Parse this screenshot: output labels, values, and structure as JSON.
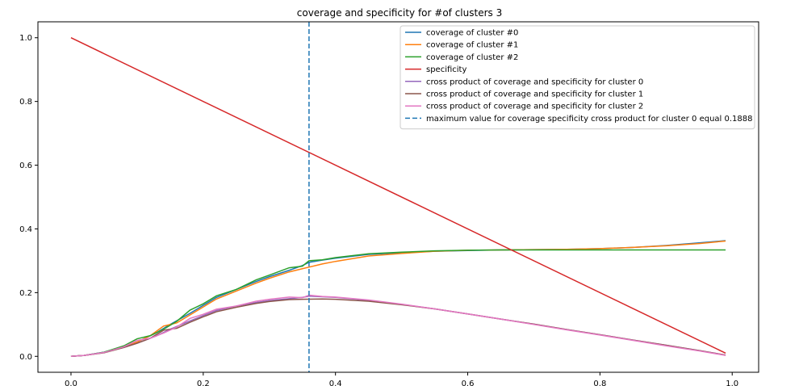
{
  "chart_data": {
    "type": "line",
    "title": "coverage and specificity for #of clusters 3",
    "xlabel": "",
    "ylabel": "",
    "xlim": [
      -0.05,
      1.04
    ],
    "ylim": [
      -0.05,
      1.05
    ],
    "xticks": [
      0.0,
      0.2,
      0.4,
      0.6,
      0.8,
      1.0
    ],
    "xtick_labels": [
      "0.0",
      "0.2",
      "0.4",
      "0.6",
      "0.8",
      "1.0"
    ],
    "yticks": [
      0.0,
      0.2,
      0.4,
      0.6,
      0.8,
      1.0
    ],
    "ytick_labels": [
      "0.0",
      "0.2",
      "0.4",
      "0.6",
      "0.8",
      "1.0"
    ],
    "grid": false,
    "legend_position": "top-right",
    "vline": {
      "x": 0.36,
      "label": "maximum value for coverage specificity cross product for cluster 0 equal 0.1888",
      "color": "#1f77b4",
      "style": "dashed"
    },
    "series": [
      {
        "name": "coverage of cluster #0",
        "color": "#1f77b4",
        "points": [
          [
            0,
            0
          ],
          [
            0.02,
            0.003
          ],
          [
            0.05,
            0.013
          ],
          [
            0.08,
            0.03
          ],
          [
            0.1,
            0.045
          ],
          [
            0.13,
            0.075
          ],
          [
            0.15,
            0.1
          ],
          [
            0.18,
            0.135
          ],
          [
            0.2,
            0.16
          ],
          [
            0.22,
            0.185
          ],
          [
            0.25,
            0.21
          ],
          [
            0.28,
            0.235
          ],
          [
            0.3,
            0.25
          ],
          [
            0.33,
            0.27
          ],
          [
            0.35,
            0.285
          ],
          [
            0.36,
            0.295
          ],
          [
            0.38,
            0.302
          ],
          [
            0.4,
            0.308
          ],
          [
            0.45,
            0.32
          ],
          [
            0.5,
            0.325
          ],
          [
            0.55,
            0.33
          ],
          [
            0.6,
            0.332
          ],
          [
            0.65,
            0.334
          ],
          [
            0.7,
            0.335
          ],
          [
            0.75,
            0.336
          ],
          [
            0.8,
            0.338
          ],
          [
            0.85,
            0.342
          ],
          [
            0.9,
            0.348
          ],
          [
            0.95,
            0.356
          ],
          [
            0.99,
            0.363
          ]
        ]
      },
      {
        "name": "coverage of cluster #1",
        "color": "#ff7f0e",
        "points": [
          [
            0,
            0
          ],
          [
            0.02,
            0.003
          ],
          [
            0.05,
            0.012
          ],
          [
            0.08,
            0.03
          ],
          [
            0.1,
            0.045
          ],
          [
            0.12,
            0.065
          ],
          [
            0.14,
            0.095
          ],
          [
            0.16,
            0.105
          ],
          [
            0.18,
            0.13
          ],
          [
            0.2,
            0.155
          ],
          [
            0.22,
            0.18
          ],
          [
            0.25,
            0.205
          ],
          [
            0.28,
            0.23
          ],
          [
            0.3,
            0.245
          ],
          [
            0.33,
            0.265
          ],
          [
            0.35,
            0.275
          ],
          [
            0.38,
            0.29
          ],
          [
            0.4,
            0.298
          ],
          [
            0.45,
            0.315
          ],
          [
            0.5,
            0.323
          ],
          [
            0.55,
            0.33
          ],
          [
            0.6,
            0.333
          ],
          [
            0.65,
            0.334
          ],
          [
            0.7,
            0.335
          ],
          [
            0.75,
            0.336
          ],
          [
            0.8,
            0.338
          ],
          [
            0.85,
            0.342
          ],
          [
            0.9,
            0.347
          ],
          [
            0.95,
            0.354
          ],
          [
            0.99,
            0.362
          ]
        ]
      },
      {
        "name": "coverage of cluster #2",
        "color": "#2ca02c",
        "points": [
          [
            0,
            0
          ],
          [
            0.02,
            0.003
          ],
          [
            0.05,
            0.013
          ],
          [
            0.08,
            0.033
          ],
          [
            0.1,
            0.055
          ],
          [
            0.12,
            0.065
          ],
          [
            0.14,
            0.085
          ],
          [
            0.16,
            0.11
          ],
          [
            0.18,
            0.145
          ],
          [
            0.2,
            0.165
          ],
          [
            0.22,
            0.19
          ],
          [
            0.25,
            0.21
          ],
          [
            0.28,
            0.24
          ],
          [
            0.3,
            0.255
          ],
          [
            0.33,
            0.278
          ],
          [
            0.35,
            0.283
          ],
          [
            0.36,
            0.3
          ],
          [
            0.38,
            0.303
          ],
          [
            0.4,
            0.31
          ],
          [
            0.45,
            0.322
          ],
          [
            0.5,
            0.327
          ],
          [
            0.55,
            0.331
          ],
          [
            0.6,
            0.333
          ],
          [
            0.65,
            0.334
          ],
          [
            0.7,
            0.334
          ],
          [
            0.75,
            0.334
          ],
          [
            0.8,
            0.334
          ],
          [
            0.85,
            0.334
          ],
          [
            0.9,
            0.334
          ],
          [
            0.95,
            0.334
          ],
          [
            0.99,
            0.334
          ]
        ]
      },
      {
        "name": "specificity",
        "color": "#d62728",
        "points": [
          [
            0,
            1.0
          ],
          [
            0.99,
            0.01
          ]
        ]
      },
      {
        "name": "cross product of coverage and specificity for cluster 0",
        "color": "#9467bd",
        "points": [
          [
            0,
            0
          ],
          [
            0.02,
            0.003
          ],
          [
            0.05,
            0.012
          ],
          [
            0.08,
            0.028
          ],
          [
            0.1,
            0.041
          ],
          [
            0.13,
            0.065
          ],
          [
            0.15,
            0.085
          ],
          [
            0.18,
            0.111
          ],
          [
            0.2,
            0.128
          ],
          [
            0.22,
            0.144
          ],
          [
            0.25,
            0.158
          ],
          [
            0.28,
            0.169
          ],
          [
            0.3,
            0.175
          ],
          [
            0.33,
            0.181
          ],
          [
            0.35,
            0.185
          ],
          [
            0.36,
            0.1888
          ],
          [
            0.38,
            0.187
          ],
          [
            0.4,
            0.185
          ],
          [
            0.45,
            0.176
          ],
          [
            0.5,
            0.163
          ],
          [
            0.55,
            0.149
          ],
          [
            0.6,
            0.133
          ],
          [
            0.65,
            0.117
          ],
          [
            0.7,
            0.101
          ],
          [
            0.75,
            0.084
          ],
          [
            0.8,
            0.068
          ],
          [
            0.85,
            0.051
          ],
          [
            0.9,
            0.035
          ],
          [
            0.95,
            0.018
          ],
          [
            0.99,
            0.004
          ]
        ]
      },
      {
        "name": "cross product of coverage and specificity for cluster 1",
        "color": "#8c564b",
        "points": [
          [
            0,
            0
          ],
          [
            0.02,
            0.003
          ],
          [
            0.05,
            0.011
          ],
          [
            0.08,
            0.028
          ],
          [
            0.1,
            0.041
          ],
          [
            0.12,
            0.057
          ],
          [
            0.14,
            0.082
          ],
          [
            0.16,
            0.088
          ],
          [
            0.18,
            0.107
          ],
          [
            0.2,
            0.124
          ],
          [
            0.22,
            0.14
          ],
          [
            0.25,
            0.154
          ],
          [
            0.28,
            0.166
          ],
          [
            0.3,
            0.172
          ],
          [
            0.33,
            0.178
          ],
          [
            0.35,
            0.179
          ],
          [
            0.38,
            0.18
          ],
          [
            0.4,
            0.179
          ],
          [
            0.45,
            0.173
          ],
          [
            0.5,
            0.162
          ],
          [
            0.55,
            0.149
          ],
          [
            0.6,
            0.133
          ],
          [
            0.65,
            0.117
          ],
          [
            0.7,
            0.101
          ],
          [
            0.75,
            0.084
          ],
          [
            0.8,
            0.068
          ],
          [
            0.85,
            0.051
          ],
          [
            0.9,
            0.035
          ],
          [
            0.95,
            0.018
          ],
          [
            0.99,
            0.004
          ]
        ]
      },
      {
        "name": "cross product of coverage and specificity for cluster 2",
        "color": "#e377c2",
        "points": [
          [
            0,
            0
          ],
          [
            0.02,
            0.003
          ],
          [
            0.05,
            0.012
          ],
          [
            0.08,
            0.03
          ],
          [
            0.1,
            0.05
          ],
          [
            0.12,
            0.057
          ],
          [
            0.14,
            0.073
          ],
          [
            0.16,
            0.092
          ],
          [
            0.18,
            0.119
          ],
          [
            0.2,
            0.132
          ],
          [
            0.22,
            0.148
          ],
          [
            0.25,
            0.158
          ],
          [
            0.28,
            0.173
          ],
          [
            0.3,
            0.179
          ],
          [
            0.33,
            0.186
          ],
          [
            0.35,
            0.184
          ],
          [
            0.36,
            0.192
          ],
          [
            0.38,
            0.188
          ],
          [
            0.4,
            0.186
          ],
          [
            0.45,
            0.177
          ],
          [
            0.5,
            0.164
          ],
          [
            0.55,
            0.149
          ],
          [
            0.6,
            0.133
          ],
          [
            0.65,
            0.117
          ],
          [
            0.7,
            0.1
          ],
          [
            0.75,
            0.083
          ],
          [
            0.8,
            0.067
          ],
          [
            0.85,
            0.05
          ],
          [
            0.9,
            0.033
          ],
          [
            0.95,
            0.017
          ],
          [
            0.99,
            0.003
          ]
        ]
      }
    ]
  }
}
